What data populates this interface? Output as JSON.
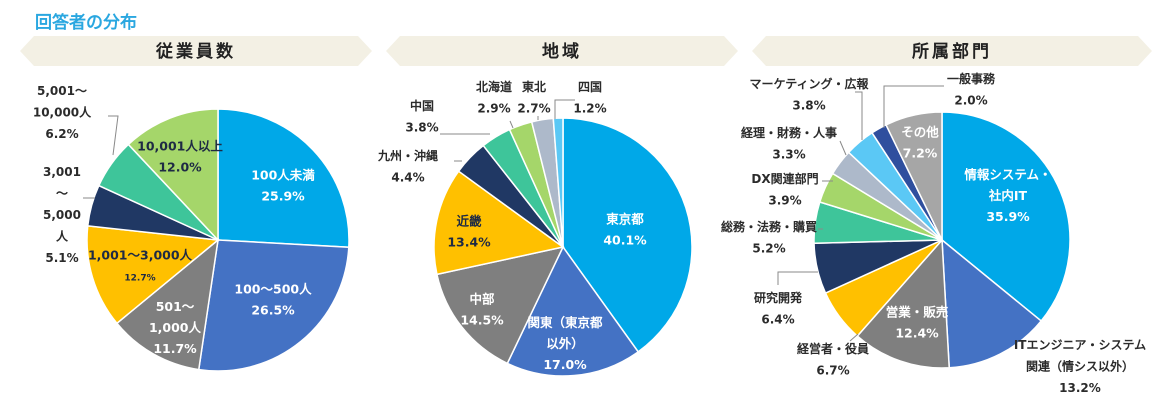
{
  "page": {
    "title": "回答者の分布"
  },
  "colors": {
    "title": "#2aa7e0",
    "banner": "#f3f0e4",
    "text": "#2b2b2b",
    "leader": "#8a8a8a"
  },
  "chart_data": [
    {
      "type": "pie",
      "title": "従業員数",
      "unit": "%",
      "slices": [
        {
          "lines": [
            "100人未満",
            "25.9%"
          ],
          "value": 25.9,
          "color": "#00a8e8",
          "label_pos": "inside"
        },
        {
          "lines": [
            "100～500人",
            "26.5%"
          ],
          "value": 26.5,
          "color": "#4472c4",
          "label_pos": "inside"
        },
        {
          "lines": [
            "501～",
            "1,000人",
            "11.7%"
          ],
          "value": 11.7,
          "color": "#7f7f7f",
          "label_pos": "inside"
        },
        {
          "lines": [
            "1,001～3,000人",
            "12.7%"
          ],
          "value": 12.7,
          "color": "#ffc000",
          "label_pos": "inside",
          "label_style": "dark"
        },
        {
          "lines": [
            "3,001",
            "～",
            "5,000",
            "人",
            "5.1%"
          ],
          "value": 5.1,
          "color": "#203864",
          "label_pos": "outside"
        },
        {
          "lines": [
            "5,001～",
            "10,000人",
            "6.2%"
          ],
          "value": 6.2,
          "color": "#3ec59a",
          "label_pos": "outside"
        },
        {
          "lines": [
            "10,001人以上",
            "12.0%"
          ],
          "value": 12.0,
          "color": "#a5d66a",
          "label_pos": "inside",
          "label_style": "dark"
        }
      ]
    },
    {
      "type": "pie",
      "title": "地域",
      "unit": "%",
      "slices": [
        {
          "lines": [
            "東京都",
            "40.1%"
          ],
          "value": 40.1,
          "color": "#00a8e8",
          "label_pos": "inside"
        },
        {
          "lines": [
            "関東（東京都",
            "以外）",
            "17.0%"
          ],
          "value": 17.0,
          "color": "#4472c4",
          "label_pos": "inside"
        },
        {
          "lines": [
            "中部",
            "14.5%"
          ],
          "value": 14.5,
          "color": "#7f7f7f",
          "label_pos": "inside"
        },
        {
          "lines": [
            "近畿",
            "13.4%"
          ],
          "value": 13.4,
          "color": "#ffc000",
          "label_pos": "inside",
          "label_style": "dark"
        },
        {
          "lines": [
            "九州・沖縄",
            "4.4%"
          ],
          "value": 4.4,
          "color": "#203864",
          "label_pos": "outside"
        },
        {
          "lines": [
            "中国",
            "3.8%"
          ],
          "value": 3.8,
          "color": "#3ec59a",
          "label_pos": "outside"
        },
        {
          "lines": [
            "北海道",
            "2.9%"
          ],
          "value": 2.9,
          "color": "#a5d66a",
          "label_pos": "outside"
        },
        {
          "lines": [
            "東北",
            "2.7%"
          ],
          "value": 2.7,
          "color": "#adb9ca",
          "label_pos": "outside"
        },
        {
          "lines": [
            "四国",
            "1.2%"
          ],
          "value": 1.2,
          "color": "#5bc8f5",
          "label_pos": "outside"
        }
      ]
    },
    {
      "type": "pie",
      "title": "所属部門",
      "unit": "%",
      "slices": [
        {
          "lines": [
            "情報システム・",
            "社内IT",
            "35.9%"
          ],
          "value": 35.9,
          "color": "#00a8e8",
          "label_pos": "inside"
        },
        {
          "lines": [
            "ITエンジニア・システム",
            "関連（情シス以外）",
            "13.2%"
          ],
          "value": 13.2,
          "color": "#4472c4",
          "label_pos": "outside"
        },
        {
          "lines": [
            "営業・販売",
            "12.4%"
          ],
          "value": 12.4,
          "color": "#7f7f7f",
          "label_pos": "inside"
        },
        {
          "lines": [
            "経営者・役員",
            "6.7%"
          ],
          "value": 6.7,
          "color": "#ffc000",
          "label_pos": "outside"
        },
        {
          "lines": [
            "研究開発",
            "6.4%"
          ],
          "value": 6.4,
          "color": "#203864",
          "label_pos": "outside"
        },
        {
          "lines": [
            "総務・法務・購買",
            "5.2%"
          ],
          "value": 5.2,
          "color": "#3ec59a",
          "label_pos": "outside"
        },
        {
          "lines": [
            "DX関連部門",
            "3.9%"
          ],
          "value": 3.9,
          "color": "#a5d66a",
          "label_pos": "outside"
        },
        {
          "lines": [
            "経理・財務・人事",
            "3.3%"
          ],
          "value": 3.3,
          "color": "#adb9ca",
          "label_pos": "outside"
        },
        {
          "lines": [
            "マーケティング・広報",
            "3.8%"
          ],
          "value": 3.8,
          "color": "#5bc8f5",
          "label_pos": "outside"
        },
        {
          "lines": [
            "一般事務",
            "2.0%"
          ],
          "value": 2.0,
          "color": "#2f4f9e",
          "label_pos": "outside"
        },
        {
          "lines": [
            "その他",
            "7.2%"
          ],
          "value": 7.2,
          "color": "#a6a6a6",
          "label_pos": "inside"
        }
      ]
    }
  ]
}
